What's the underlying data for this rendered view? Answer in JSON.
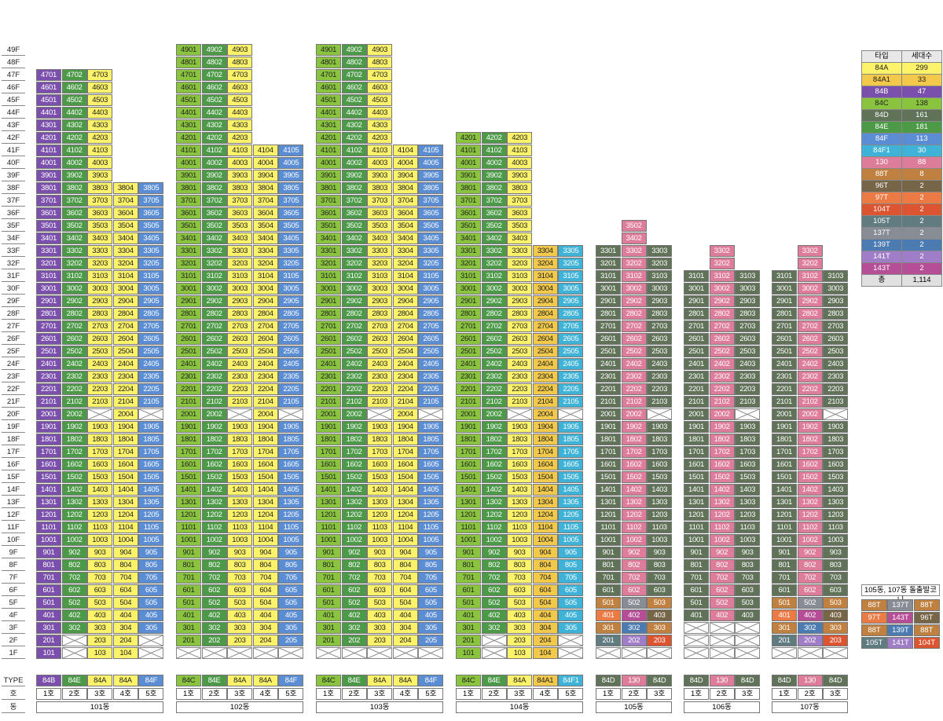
{
  "colors": {
    "84A": "#fcf36a",
    "84A1": "#f2c94a",
    "84B": "#7b50ad",
    "84C": "#8ac43f",
    "84D": "#607358",
    "84E": "#4c9a47",
    "84F": "#5a8dd4",
    "84F1": "#3fb3d7",
    "130": "#de7d9a",
    "88T": "#c08040",
    "96T": "#776548",
    "97T": "#ec7a45",
    "104T": "#dd5430",
    "105T": "#607c80",
    "137T": "#888c94",
    "139T": "#4b7bb0",
    "141T": "#a07ec7",
    "143T": "#b54e96",
    "total": "#e0e0e0"
  },
  "dark_text_types": [
    "84A",
    "84A1",
    "84C"
  ],
  "floor_labels": [
    "49F",
    "48F",
    "47F",
    "46F",
    "45F",
    "44F",
    "43F",
    "42F",
    "41F",
    "40F",
    "39F",
    "38F",
    "37F",
    "36F",
    "35F",
    "34F",
    "33F",
    "32F",
    "31F",
    "30F",
    "29F",
    "28F",
    "27F",
    "26F",
    "25F",
    "24F",
    "23F",
    "22F",
    "21F",
    "20F",
    "19F",
    "18F",
    "17F",
    "16F",
    "15F",
    "14F",
    "13F",
    "12F",
    "11F",
    "10F",
    "9F",
    "8F",
    "7F",
    "6F",
    "5F",
    "4F",
    "3F",
    "2F",
    "1F"
  ],
  "row_labels": {
    "type": "TYPE",
    "ho": "호",
    "dong": "동"
  },
  "buildings": [
    {
      "name": "101동",
      "types": [
        "84B",
        "84E",
        "84A",
        "84A",
        "84F"
      ],
      "ho_labels": [
        "1호",
        "2호",
        "3호",
        "4호",
        "5호"
      ],
      "tops": [
        47,
        47,
        47,
        38,
        38
      ],
      "missing": [
        "20-3",
        "20-5",
        "2-2",
        "2-5",
        "1-2",
        "1-5"
      ],
      "overrides": {}
    },
    {
      "name": "102동",
      "types": [
        "84C",
        "84E",
        "84A",
        "84A",
        "84F"
      ],
      "ho_labels": [
        "1호",
        "2호",
        "3호",
        "4호",
        "5호"
      ],
      "tops": [
        49,
        49,
        49,
        41,
        41
      ],
      "missing": [
        "20-3",
        "20-5",
        "1-1",
        "1-2",
        "1-3",
        "1-4",
        "1-5"
      ],
      "overrides": {}
    },
    {
      "name": "103동",
      "types": [
        "84C",
        "84E",
        "84A",
        "84A",
        "84F"
      ],
      "ho_labels": [
        "1호",
        "2호",
        "3호",
        "4호",
        "5호"
      ],
      "tops": [
        49,
        49,
        49,
        41,
        41
      ],
      "missing": [
        "20-3",
        "20-5",
        "1-1",
        "1-2",
        "1-3",
        "1-4",
        "1-5"
      ],
      "overrides": {}
    },
    {
      "name": "104동",
      "types": [
        "84C",
        "84E",
        "84A",
        "84A1",
        "84F1"
      ],
      "ho_labels": [
        "1호",
        "2호",
        "3호",
        "4호",
        "5호"
      ],
      "tops": [
        42,
        42,
        42,
        33,
        33
      ],
      "missing": [
        "20-3",
        "20-5",
        "2-2",
        "2-5",
        "1-2",
        "1-5"
      ],
      "overrides": {}
    },
    {
      "name": "105동",
      "types": [
        "84D",
        "130",
        "84D"
      ],
      "ho_labels": [
        "1호",
        "2호",
        "3호"
      ],
      "tops": [
        33,
        35,
        33
      ],
      "missing": [
        "20-3",
        "1-1",
        "1-2",
        "1-3"
      ],
      "overrides": {
        "5-1": "88T",
        "5-2": "137T",
        "5-3": "88T",
        "4-1": "97T",
        "4-2": "143T",
        "4-3": "96T",
        "3-1": "88T",
        "3-2": "139T",
        "3-3": "88T",
        "2-1": "105T",
        "2-2": "141T",
        "2-3": "104T"
      }
    },
    {
      "name": "106동",
      "types": [
        "84D",
        "130",
        "84D"
      ],
      "ho_labels": [
        "1호",
        "2호",
        "3호"
      ],
      "tops": [
        31,
        33,
        31
      ],
      "missing": [
        "20-3",
        "3-1",
        "3-2",
        "3-3",
        "2-1",
        "2-2",
        "2-3",
        "1-1",
        "1-2",
        "1-3"
      ],
      "overrides": {}
    },
    {
      "name": "107동",
      "types": [
        "84D",
        "130",
        "84D"
      ],
      "ho_labels": [
        "1호",
        "2호",
        "3호"
      ],
      "tops": [
        31,
        33,
        31
      ],
      "missing": [
        "20-3",
        "1-1",
        "1-2",
        "1-3"
      ],
      "overrides": {
        "5-1": "88T",
        "5-2": "137T",
        "5-3": "88T",
        "4-1": "97T",
        "4-2": "143T",
        "4-3": "96T",
        "3-1": "88T",
        "3-2": "139T",
        "3-3": "88T",
        "2-1": "105T",
        "2-2": "141T",
        "2-3": "104T"
      }
    }
  ],
  "legend": {
    "header": [
      "타입",
      "세대수"
    ],
    "rows": [
      [
        "84A",
        "299"
      ],
      [
        "84A1",
        "33"
      ],
      [
        "84B",
        "47"
      ],
      [
        "84C",
        "138"
      ],
      [
        "84D",
        "161"
      ],
      [
        "84E",
        "181"
      ],
      [
        "84F",
        "113"
      ],
      [
        "84F1",
        "30"
      ],
      [
        "130",
        "88"
      ],
      [
        "88T",
        "8"
      ],
      [
        "96T",
        "2"
      ],
      [
        "97T",
        "2"
      ],
      [
        "104T",
        "2"
      ],
      [
        "105T",
        "2"
      ],
      [
        "137T",
        "2"
      ],
      [
        "139T",
        "2"
      ],
      [
        "141T",
        "2"
      ],
      [
        "143T",
        "2"
      ]
    ],
    "total": [
      "총",
      "1,114"
    ]
  },
  "balcony_box": {
    "title": "105동, 107동 돌출발코니",
    "grid": [
      [
        "88T",
        "137T",
        "88T"
      ],
      [
        "97T",
        "143T",
        "96T"
      ],
      [
        "88T",
        "139T",
        "88T"
      ],
      [
        "105T",
        "141T",
        "104T"
      ]
    ]
  }
}
